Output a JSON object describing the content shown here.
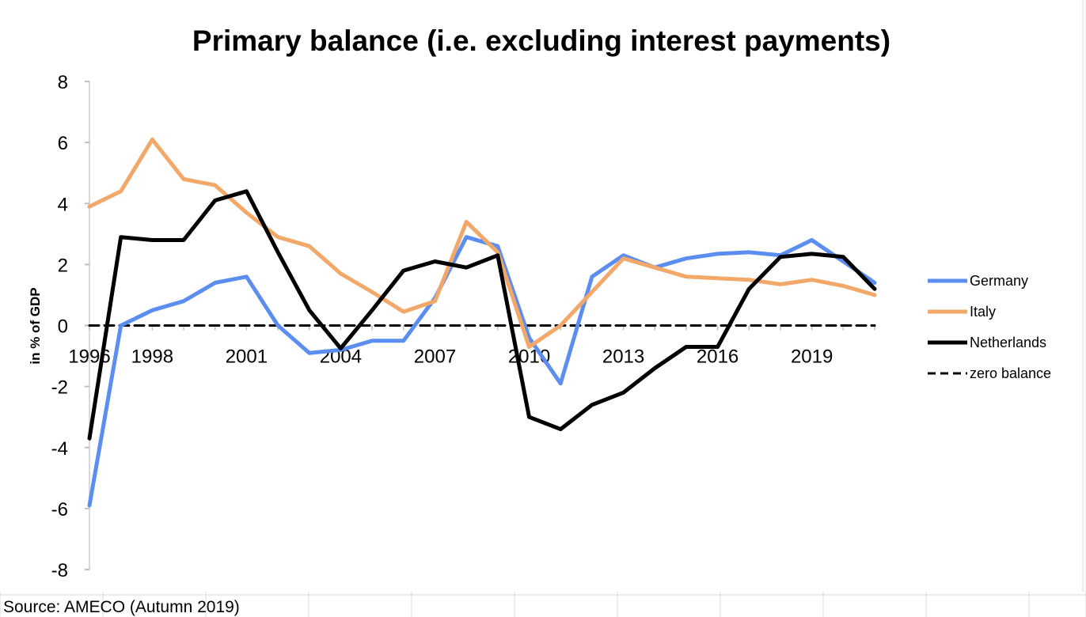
{
  "chart_data": {
    "type": "line",
    "title": "Primary balance (i.e. excluding interest payments)",
    "ylabel": "in % of GDP",
    "xlabel": "",
    "source": "Source: AMECO (Autumn 2019)",
    "x": [
      1996,
      1997,
      1998,
      1999,
      2000,
      2001,
      2002,
      2003,
      2004,
      2005,
      2006,
      2007,
      2008,
      2009,
      2010,
      2011,
      2012,
      2013,
      2014,
      2015,
      2016,
      2017,
      2018,
      2019,
      2020,
      2021
    ],
    "x_tick_labels": [
      "1996",
      "1998",
      "2001",
      "2004",
      "2007",
      "2010",
      "2013",
      "2016",
      "2019"
    ],
    "x_tick_values": [
      1996,
      1998,
      2001,
      2004,
      2007,
      2010,
      2013,
      2016,
      2019
    ],
    "ylim": [
      -8,
      8
    ],
    "y_ticks": [
      8,
      6,
      4,
      2,
      0,
      -2,
      -4,
      -6,
      -8
    ],
    "y_tick_labels": [
      "8",
      "6",
      "4",
      "2",
      "0",
      "-2",
      "-4",
      "-6",
      "-8"
    ],
    "grid": "vertical",
    "legend_position": "right",
    "series": [
      {
        "name": "Germany",
        "color": "#5b8ef0",
        "style": "solid",
        "values": [
          -5.9,
          0.0,
          0.5,
          0.8,
          1.4,
          1.6,
          0.0,
          -0.9,
          -0.8,
          -0.5,
          -0.5,
          0.9,
          2.9,
          2.6,
          -0.4,
          -1.9,
          1.6,
          2.3,
          1.9,
          2.2,
          2.35,
          2.4,
          2.3,
          2.8,
          2.1,
          1.4
        ]
      },
      {
        "name": "Italy",
        "color": "#f2a868",
        "style": "solid",
        "values": [
          3.9,
          4.4,
          6.1,
          4.8,
          4.6,
          3.7,
          2.9,
          2.6,
          1.7,
          1.1,
          0.45,
          0.8,
          3.4,
          2.4,
          -0.7,
          0.0,
          1.1,
          2.2,
          1.9,
          1.6,
          1.55,
          1.5,
          1.35,
          1.5,
          1.3,
          1.0
        ]
      },
      {
        "name": "Netherlands",
        "color": "#000000",
        "style": "solid",
        "values": [
          -3.7,
          2.9,
          2.8,
          2.8,
          4.1,
          4.4,
          2.4,
          0.5,
          -0.75,
          0.5,
          1.8,
          2.1,
          1.9,
          2.3,
          -3.0,
          -3.4,
          -2.6,
          -2.2,
          -1.4,
          -0.7,
          -0.7,
          1.2,
          2.25,
          2.35,
          2.25,
          1.2
        ]
      },
      {
        "name": "zero balance",
        "color": "#000000",
        "style": "dashed",
        "values": [
          0,
          0,
          0,
          0,
          0,
          0,
          0,
          0,
          0,
          0,
          0,
          0,
          0,
          0,
          0,
          0,
          0,
          0,
          0,
          0,
          0,
          0,
          0,
          0,
          0,
          0
        ]
      }
    ]
  }
}
